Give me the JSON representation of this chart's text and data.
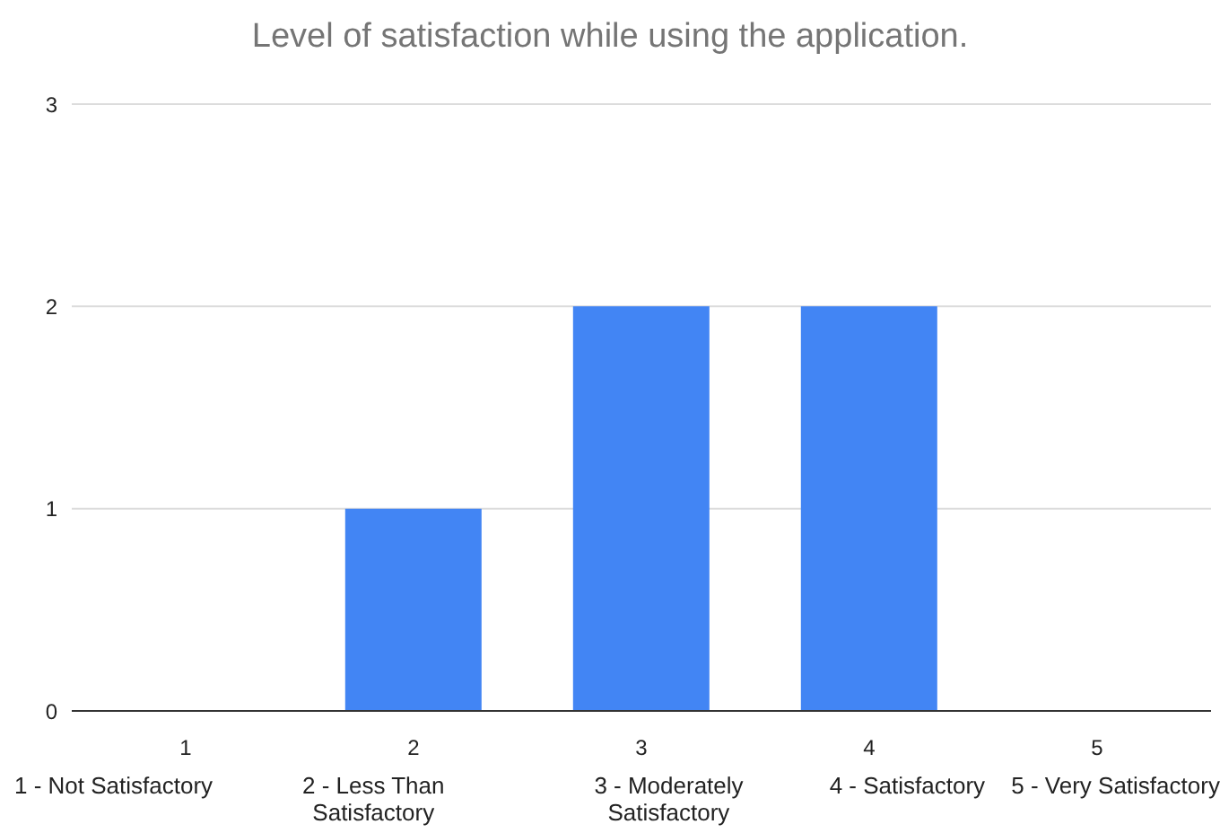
{
  "chart_data": {
    "type": "bar",
    "title": "Level of satisfaction while using the application.",
    "categories": [
      "1",
      "2",
      "3",
      "4",
      "5"
    ],
    "values": [
      0,
      1,
      2,
      2,
      0
    ],
    "color": "#4285f4",
    "ylim": [
      0,
      3
    ],
    "yticks": [
      0,
      1,
      2,
      3
    ],
    "grid": "y",
    "legend": false,
    "annotations": [
      "1 - Not Satisfactory",
      "2 - Less Than Satisfactory",
      "3 - Moderately Satisfactory",
      "4 - Satisfactory",
      "5 - Very Satisfactory"
    ]
  }
}
